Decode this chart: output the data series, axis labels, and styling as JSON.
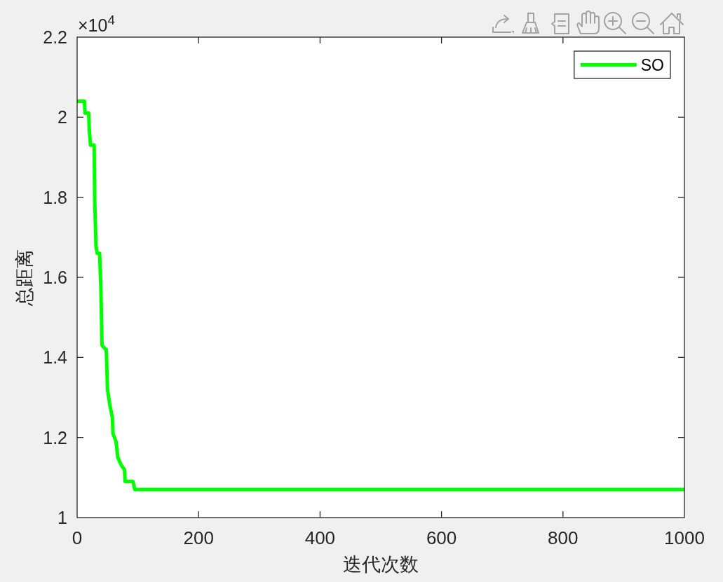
{
  "chart_data": {
    "type": "line",
    "xlabel": "迭代次数",
    "ylabel": "总距离",
    "annotations": [
      "×10$^{4}$"
    ],
    "x": [
      0,
      12,
      13,
      19,
      20,
      22,
      28,
      29,
      31,
      33,
      37,
      39,
      41,
      47,
      48,
      50,
      54,
      58,
      59,
      64,
      67,
      73,
      78,
      79,
      92,
      95,
      1000
    ],
    "series": [
      {
        "name": "SO",
        "color": "#00ff00",
        "values": [
          2.04,
          2.04,
          2.01,
          2.01,
          1.97,
          1.93,
          1.93,
          1.79,
          1.68,
          1.66,
          1.66,
          1.58,
          1.43,
          1.42,
          1.42,
          1.32,
          1.28,
          1.25,
          1.21,
          1.19,
          1.15,
          1.13,
          1.12,
          1.09,
          1.09,
          1.07,
          1.07
        ]
      }
    ],
    "xlim": [
      0,
      1000
    ],
    "xticks": [
      0,
      200,
      400,
      600,
      800,
      1000
    ],
    "ylim": [
      1,
      2.2
    ],
    "yticks": [
      1,
      1.2,
      1.4,
      1.6,
      1.8,
      2,
      2.2
    ],
    "legend": "top right",
    "line_style": "solid"
  }
}
